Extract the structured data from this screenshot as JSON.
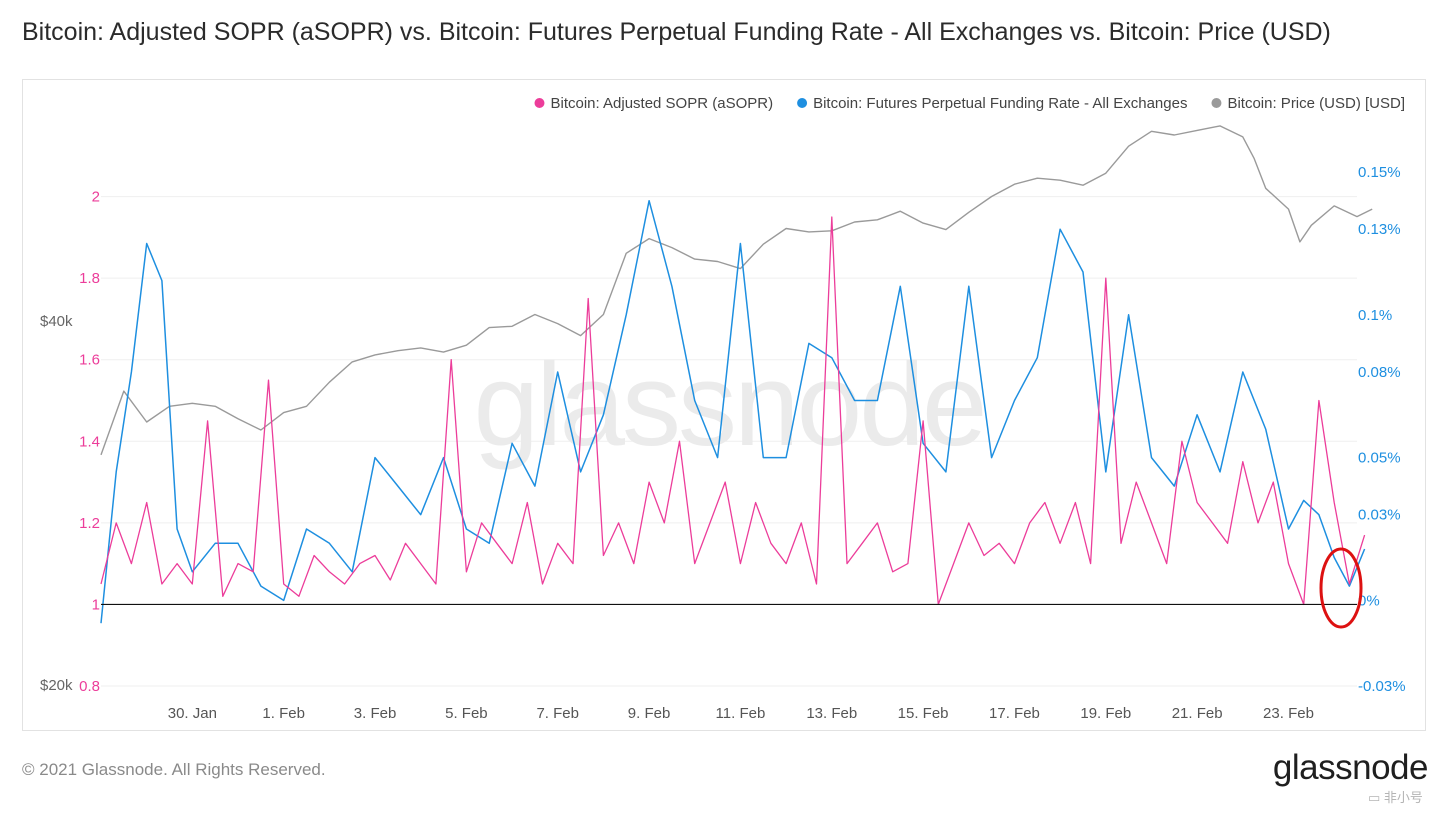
{
  "title": "Bitcoin: Adjusted SOPR (aSOPR) vs. Bitcoin: Futures Perpetual Funding Rate - All Exchanges vs. Bitcoin: Price (USD)",
  "footer": "© 2021 Glassnode. All Rights Reserved.",
  "brand": "glassnode",
  "watermark_center": "glassnode",
  "corner_watermark": "非小号",
  "colors": {
    "sopr": "#ec3d9a",
    "funding": "#1e8fe0",
    "price": "#9a9a9a",
    "annotation": "#dd1111"
  },
  "chart_data": {
    "type": "line",
    "x_start": "2021-01-28",
    "x_end": "2021-02-24",
    "x_tick_labels": [
      "30. Jan",
      "1. Feb",
      "3. Feb",
      "5. Feb",
      "7. Feb",
      "9. Feb",
      "11. Feb",
      "13. Feb",
      "15. Feb",
      "17. Feb",
      "19. Feb",
      "21. Feb",
      "23. Feb"
    ],
    "left_axis_sopr": {
      "ylim": [
        0.8,
        2.2
      ],
      "tick_labels": [
        "0.8",
        "1",
        "1.2",
        "1.4",
        "1.6",
        "1.8",
        "2"
      ]
    },
    "left_axis_price": {
      "scale": "log",
      "tick_labels": [
        "$20k",
        "$40k"
      ]
    },
    "right_axis_funding": {
      "unit": "%",
      "ylim": [
        -0.03,
        0.17
      ],
      "tick_labels": [
        "-0.03%",
        "0%",
        "0.03%",
        "0.05%",
        "0.08%",
        "0.1%",
        "0.13%",
        "0.15%"
      ]
    },
    "baseline": 1,
    "legend": {
      "placement": "top-right",
      "entries": [
        "Bitcoin: Adjusted SOPR (aSOPR)",
        "Bitcoin: Futures Perpetual Funding Rate - All Exchanges",
        "Bitcoin: Price (USD) [USD]"
      ]
    },
    "series": [
      {
        "name": "Bitcoin: Price (USD) [USD]",
        "axis": "price",
        "dates": [
          "2021-01-28",
          "2021-01-28T12:00",
          "2021-01-29",
          "2021-01-29T12:00",
          "2021-01-30",
          "2021-01-30T12:00",
          "2021-01-31",
          "2021-01-31T12:00",
          "2021-02-01",
          "2021-02-01T12:00",
          "2021-02-02",
          "2021-02-02T12:00",
          "2021-02-03",
          "2021-02-03T12:00",
          "2021-02-04",
          "2021-02-04T12:00",
          "2021-02-05",
          "2021-02-05T12:00",
          "2021-02-06",
          "2021-02-06T12:00",
          "2021-02-07",
          "2021-02-07T12:00",
          "2021-02-08",
          "2021-02-08T12:00",
          "2021-02-09",
          "2021-02-09T12:00",
          "2021-02-10",
          "2021-02-10T12:00",
          "2021-02-11",
          "2021-02-11T12:00",
          "2021-02-12",
          "2021-02-12T12:00",
          "2021-02-13",
          "2021-02-13T12:00",
          "2021-02-14",
          "2021-02-14T12:00",
          "2021-02-15",
          "2021-02-15T12:00",
          "2021-02-16",
          "2021-02-16T12:00",
          "2021-02-17",
          "2021-02-17T12:00",
          "2021-02-18",
          "2021-02-18T12:00",
          "2021-02-19",
          "2021-02-19T12:00",
          "2021-02-20",
          "2021-02-20T12:00",
          "2021-02-21",
          "2021-02-21T12:00",
          "2021-02-22",
          "2021-02-22T06:00",
          "2021-02-22T12:00",
          "2021-02-23",
          "2021-02-23T06:00",
          "2021-02-23T12:00",
          "2021-02-24",
          "2021-02-24T12:00",
          "2021-02-24T20:00"
        ],
        "values": [
          31000,
          35000,
          33000,
          34000,
          34200,
          34000,
          33200,
          32500,
          33600,
          34000,
          35600,
          37000,
          37500,
          37800,
          38000,
          37700,
          38200,
          39500,
          39600,
          40500,
          39800,
          38900,
          40500,
          45500,
          46800,
          46000,
          45000,
          44800,
          44200,
          46300,
          47700,
          47400,
          47500,
          48300,
          48500,
          49300,
          48200,
          47600,
          49200,
          50700,
          51900,
          52500,
          52300,
          51800,
          53000,
          55800,
          57400,
          57000,
          57500,
          58000,
          56800,
          54500,
          51500,
          49500,
          46500,
          48000,
          49800,
          48800,
          49500
        ]
      },
      {
        "name": "Bitcoin: Futures Perpetual Funding Rate - All Exchanges",
        "axis": "funding",
        "dates": [
          "2021-01-28",
          "2021-01-28T08:00",
          "2021-01-28T16:00",
          "2021-01-29",
          "2021-01-29T08:00",
          "2021-01-29T16:00",
          "2021-01-30",
          "2021-01-30T12:00",
          "2021-01-31",
          "2021-01-31T12:00",
          "2021-02-01",
          "2021-02-01T12:00",
          "2021-02-02",
          "2021-02-02T12:00",
          "2021-02-03",
          "2021-02-03T12:00",
          "2021-02-04",
          "2021-02-04T12:00",
          "2021-02-05",
          "2021-02-05T12:00",
          "2021-02-06",
          "2021-02-06T12:00",
          "2021-02-07",
          "2021-02-07T12:00",
          "2021-02-08",
          "2021-02-08T12:00",
          "2021-02-09",
          "2021-02-09T12:00",
          "2021-02-10",
          "2021-02-10T12:00",
          "2021-02-11",
          "2021-02-11T12:00",
          "2021-02-12",
          "2021-02-12T12:00",
          "2021-02-13",
          "2021-02-13T12:00",
          "2021-02-14",
          "2021-02-14T12:00",
          "2021-02-15",
          "2021-02-15T12:00",
          "2021-02-16",
          "2021-02-16T12:00",
          "2021-02-17",
          "2021-02-17T12:00",
          "2021-02-18",
          "2021-02-18T12:00",
          "2021-02-19",
          "2021-02-19T12:00",
          "2021-02-20",
          "2021-02-20T12:00",
          "2021-02-21",
          "2021-02-21T12:00",
          "2021-02-22",
          "2021-02-22T12:00",
          "2021-02-23",
          "2021-02-23T08:00",
          "2021-02-23T16:00",
          "2021-02-24",
          "2021-02-24T08:00",
          "2021-02-24T16:00"
        ],
        "values": [
          -0.008,
          0.045,
          0.08,
          0.125,
          0.112,
          0.025,
          0.01,
          0.02,
          0.02,
          0.005,
          0,
          0.025,
          0.02,
          0.01,
          0.05,
          0.04,
          0.03,
          0.05,
          0.025,
          0.02,
          0.055,
          0.04,
          0.08,
          0.045,
          0.065,
          0.1,
          0.14,
          0.11,
          0.07,
          0.05,
          0.125,
          0.05,
          0.05,
          0.09,
          0.085,
          0.07,
          0.07,
          0.11,
          0.055,
          0.045,
          0.11,
          0.05,
          0.07,
          0.085,
          0.13,
          0.115,
          0.045,
          0.1,
          0.05,
          0.04,
          0.065,
          0.045,
          0.08,
          0.06,
          0.025,
          0.035,
          0.03,
          0.015,
          0.005,
          0.018
        ]
      },
      {
        "name": "Bitcoin: Adjusted SOPR (aSOPR)",
        "axis": "sopr",
        "dates": [
          "2021-01-28",
          "2021-01-28T08:00",
          "2021-01-28T16:00",
          "2021-01-29",
          "2021-01-29T08:00",
          "2021-01-29T16:00",
          "2021-01-30",
          "2021-01-30T08:00",
          "2021-01-30T16:00",
          "2021-01-31",
          "2021-01-31T08:00",
          "2021-01-31T16:00",
          "2021-02-01",
          "2021-02-01T08:00",
          "2021-02-01T16:00",
          "2021-02-02",
          "2021-02-02T08:00",
          "2021-02-02T16:00",
          "2021-02-03",
          "2021-02-03T08:00",
          "2021-02-03T16:00",
          "2021-02-04",
          "2021-02-04T08:00",
          "2021-02-04T16:00",
          "2021-02-05",
          "2021-02-05T08:00",
          "2021-02-05T16:00",
          "2021-02-06",
          "2021-02-06T08:00",
          "2021-02-06T16:00",
          "2021-02-07",
          "2021-02-07T08:00",
          "2021-02-07T16:00",
          "2021-02-08",
          "2021-02-08T08:00",
          "2021-02-08T16:00",
          "2021-02-09",
          "2021-02-09T08:00",
          "2021-02-09T16:00",
          "2021-02-10",
          "2021-02-10T08:00",
          "2021-02-10T16:00",
          "2021-02-11",
          "2021-02-11T08:00",
          "2021-02-11T16:00",
          "2021-02-12",
          "2021-02-12T08:00",
          "2021-02-12T16:00",
          "2021-02-13",
          "2021-02-13T08:00",
          "2021-02-13T16:00",
          "2021-02-14",
          "2021-02-14T08:00",
          "2021-02-14T16:00",
          "2021-02-15",
          "2021-02-15T08:00",
          "2021-02-15T16:00",
          "2021-02-16",
          "2021-02-16T08:00",
          "2021-02-16T16:00",
          "2021-02-17",
          "2021-02-17T08:00",
          "2021-02-17T16:00",
          "2021-02-18",
          "2021-02-18T08:00",
          "2021-02-18T16:00",
          "2021-02-19",
          "2021-02-19T08:00",
          "2021-02-19T16:00",
          "2021-02-20",
          "2021-02-20T08:00",
          "2021-02-20T16:00",
          "2021-02-21",
          "2021-02-21T08:00",
          "2021-02-21T16:00",
          "2021-02-22",
          "2021-02-22T08:00",
          "2021-02-22T16:00",
          "2021-02-23",
          "2021-02-23T08:00",
          "2021-02-23T16:00",
          "2021-02-24",
          "2021-02-24T08:00",
          "2021-02-24T16:00"
        ],
        "values": [
          1.05,
          1.2,
          1.1,
          1.25,
          1.05,
          1.1,
          1.05,
          1.45,
          1.02,
          1.1,
          1.08,
          1.55,
          1.05,
          1.02,
          1.12,
          1.08,
          1.05,
          1.1,
          1.12,
          1.06,
          1.15,
          1.1,
          1.05,
          1.6,
          1.08,
          1.2,
          1.15,
          1.1,
          1.25,
          1.05,
          1.15,
          1.1,
          1.75,
          1.12,
          1.2,
          1.1,
          1.3,
          1.2,
          1.4,
          1.1,
          1.2,
          1.3,
          1.1,
          1.25,
          1.15,
          1.1,
          1.2,
          1.05,
          1.95,
          1.1,
          1.15,
          1.2,
          1.08,
          1.1,
          1.45,
          1.0,
          1.1,
          1.2,
          1.12,
          1.15,
          1.1,
          1.2,
          1.25,
          1.15,
          1.25,
          1.1,
          1.8,
          1.15,
          1.3,
          1.2,
          1.1,
          1.4,
          1.25,
          1.2,
          1.15,
          1.35,
          1.2,
          1.3,
          1.1,
          1.0,
          1.5,
          1.25,
          1.05,
          1.17
        ]
      }
    ]
  }
}
